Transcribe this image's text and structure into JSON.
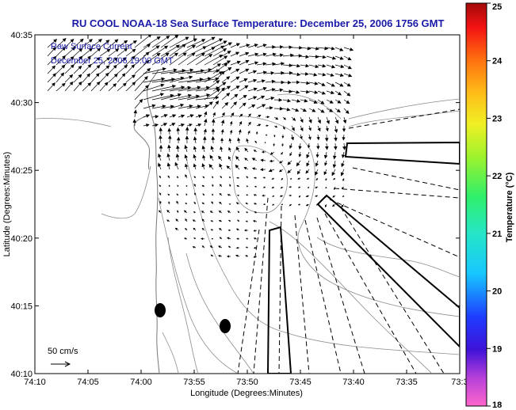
{
  "chart_data": {
    "type": "map-vector",
    "title": "RU COOL  NOAA-18  Sea Surface Temperature:  December 25, 2006 1756 GMT",
    "xlabel": "Longitude (Degrees:Minutes)",
    "ylabel": "Latitude (Degrees:Minutes)",
    "x_ticks": [
      "74:10",
      "74:05",
      "74:00",
      "73:55",
      "73:50",
      "73:45",
      "73:40",
      "73:35",
      "73:3"
    ],
    "y_ticks": [
      "40:10",
      "40:15",
      "40:20",
      "40:25",
      "40:30",
      "40:35"
    ],
    "inset_title": "Raw Surface Current",
    "inset_date": "December 25, 2006 19:00 GMT",
    "scale_label": "50 cm/s",
    "colorbar": {
      "label": "Temperature (°C)",
      "min": 18,
      "max": 25,
      "ticks": [
        "18",
        "19",
        "20",
        "21",
        "22",
        "23",
        "24",
        "25"
      ]
    },
    "colors": {
      "title": "#1a1aa8",
      "arrows": "#000000",
      "contours": "#8c8c8c"
    }
  }
}
